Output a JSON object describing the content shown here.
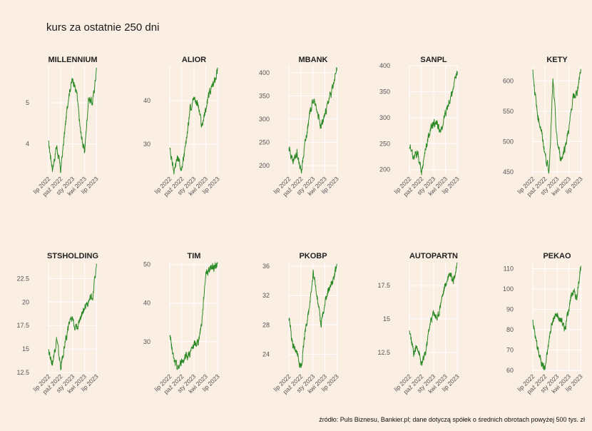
{
  "page": {
    "title": "kurs za ostatnie 250 dni",
    "caption": "źródło: Puls Biznesu, Bankier.pl; dane dotyczą spółek o średnich obrotach powyżej 500 tys. zł"
  },
  "colors": {
    "background": "#fbeee3",
    "grid": "#ffffff",
    "line": "#2b8a26"
  },
  "chart_data": [
    {
      "type": "line",
      "title": "MILLENNIUM",
      "ylim": [
        3.25,
        5.9
      ],
      "yticks": [
        4,
        5
      ],
      "xticks": [
        "lip 2022",
        "paź 2022",
        "sty 2023",
        "kwi 2023",
        "lip 2023"
      ],
      "x": [
        "2022-07",
        "2022-08",
        "2022-09",
        "2022-10",
        "2022-11",
        "2022-12",
        "2023-01",
        "2023-02",
        "2023-03",
        "2023-04",
        "2023-05",
        "2023-06",
        "2023-07"
      ],
      "values": [
        4.0,
        3.4,
        3.95,
        3.35,
        4.3,
        5.2,
        5.6,
        5.2,
        4.3,
        3.8,
        5.1,
        5.0,
        5.8
      ]
    },
    {
      "type": "line",
      "title": "ALIOR",
      "ylim": [
        23,
        48
      ],
      "yticks": [
        30,
        40
      ],
      "xticks": [
        "lip 2022",
        "paź 2022",
        "sty 2023",
        "kwi 2023",
        "lip 2023"
      ],
      "x": [
        "2022-07",
        "2022-08",
        "2022-09",
        "2022-10",
        "2022-11",
        "2022-12",
        "2023-01",
        "2023-02",
        "2023-03",
        "2023-04",
        "2023-05",
        "2023-06",
        "2023-07"
      ],
      "values": [
        29,
        24,
        27,
        24,
        30,
        38,
        41,
        39,
        34,
        38,
        42,
        44,
        47
      ]
    },
    {
      "type": "line",
      "title": "MBANK",
      "ylim": [
        180,
        415
      ],
      "yticks": [
        200,
        250,
        300,
        350,
        400
      ],
      "xticks": [
        "lip 2022",
        "paź 2022",
        "sty 2023",
        "kwi 2023",
        "lip 2023"
      ],
      "x": [
        "2022-07",
        "2022-08",
        "2022-09",
        "2022-10",
        "2022-11",
        "2022-12",
        "2023-01",
        "2023-02",
        "2023-03",
        "2023-04",
        "2023-05",
        "2023-06",
        "2023-07"
      ],
      "values": [
        240,
        205,
        230,
        185,
        250,
        300,
        345,
        320,
        280,
        310,
        340,
        370,
        410
      ]
    },
    {
      "type": "line",
      "title": "SANPL",
      "ylim": [
        190,
        400
      ],
      "yticks": [
        200,
        250,
        300,
        350,
        400
      ],
      "xticks": [
        "lip 2022",
        "paź 2022",
        "sty 2023",
        "kwi 2023",
        "lip 2023"
      ],
      "x": [
        "2022-07",
        "2022-08",
        "2022-09",
        "2022-10",
        "2022-11",
        "2022-12",
        "2023-01",
        "2023-02",
        "2023-03",
        "2023-04",
        "2023-05",
        "2023-06",
        "2023-07"
      ],
      "values": [
        245,
        225,
        230,
        195,
        240,
        270,
        290,
        285,
        275,
        310,
        330,
        360,
        390
      ]
    },
    {
      "type": "line",
      "title": "KETY",
      "ylim": [
        445,
        625
      ],
      "yticks": [
        450,
        500,
        550,
        600
      ],
      "xticks": [
        "lip 2022",
        "paź 2022",
        "sty 2023",
        "kwi 2023",
        "lip 2023"
      ],
      "x": [
        "2022-07",
        "2022-08",
        "2022-09",
        "2022-10",
        "2022-11",
        "2022-12",
        "2023-01",
        "2023-02",
        "2023-03",
        "2023-04",
        "2023-05",
        "2023-06",
        "2023-07"
      ],
      "values": [
        615,
        550,
        520,
        480,
        450,
        600,
        500,
        470,
        490,
        520,
        570,
        580,
        620
      ]
    },
    {
      "type": "line",
      "title": "STSHOLDING",
      "ylim": [
        12.5,
        24.2
      ],
      "yticks": [
        12.5,
        15.0,
        17.5,
        20.0,
        22.5
      ],
      "xticks": [
        "lip 2022",
        "paź 2022",
        "sty 2023",
        "kwi 2023",
        "lip 2023"
      ],
      "x": [
        "2022-07",
        "2022-08",
        "2022-09",
        "2022-10",
        "2022-11",
        "2022-12",
        "2023-01",
        "2023-02",
        "2023-03",
        "2023-04",
        "2023-05",
        "2023-06",
        "2023-07"
      ],
      "values": [
        14.8,
        13.5,
        16.0,
        13.0,
        15.5,
        17.5,
        18.2,
        17.2,
        18.5,
        19.5,
        20.0,
        20.5,
        24.0
      ]
    },
    {
      "type": "line",
      "title": "TIM",
      "ylim": [
        22,
        50.5
      ],
      "yticks": [
        30,
        40,
        50
      ],
      "xticks": [
        "lip 2022",
        "paź 2022",
        "sty 2023",
        "kwi 2023",
        "lip 2023"
      ],
      "x": [
        "2022-07",
        "2022-08",
        "2022-09",
        "2022-10",
        "2022-11",
        "2022-12",
        "2023-01",
        "2023-02",
        "2023-03",
        "2023-04",
        "2023-05",
        "2023-06",
        "2023-07"
      ],
      "values": [
        32,
        25,
        23,
        25,
        26,
        27,
        29,
        30,
        35,
        48,
        49,
        49.5,
        50
      ]
    },
    {
      "type": "line",
      "title": "PKOBP",
      "ylim": [
        21.5,
        36.5
      ],
      "yticks": [
        24,
        28,
        32,
        36
      ],
      "xticks": [
        "lip 2022",
        "paź 2022",
        "sty 2023",
        "kwi 2023",
        "lip 2023"
      ],
      "x": [
        "2022-07",
        "2022-08",
        "2022-09",
        "2022-10",
        "2022-11",
        "2022-12",
        "2023-01",
        "2023-02",
        "2023-03",
        "2023-04",
        "2023-05",
        "2023-06",
        "2023-07"
      ],
      "values": [
        29,
        25,
        24,
        22,
        27,
        30,
        35,
        32,
        28,
        31,
        33,
        34,
        36
      ]
    },
    {
      "type": "line",
      "title": "AUTOPARTN",
      "ylim": [
        11,
        19.2
      ],
      "yticks": [
        12.5,
        15.0,
        17.5
      ],
      "xticks": [
        "lip 2022",
        "paź 2022",
        "sty 2023",
        "kwi 2023",
        "lip 2023"
      ],
      "x": [
        "2022-07",
        "2022-08",
        "2022-09",
        "2022-10",
        "2022-11",
        "2022-12",
        "2023-01",
        "2023-02",
        "2023-03",
        "2023-04",
        "2023-05",
        "2023-06",
        "2023-07"
      ],
      "values": [
        14.0,
        12.5,
        13.0,
        11.5,
        12.5,
        14.5,
        15.5,
        15.0,
        16.5,
        17.5,
        18.5,
        18.0,
        19.0
      ]
    },
    {
      "type": "line",
      "title": "PEKAO",
      "ylim": [
        59,
        113
      ],
      "yticks": [
        60,
        70,
        80,
        90,
        100,
        110
      ],
      "xticks": [
        "lip 2022",
        "paź 2022",
        "sty 2023",
        "kwi 2023",
        "lip 2023"
      ],
      "x": [
        "2022-07",
        "2022-08",
        "2022-09",
        "2022-10",
        "2022-11",
        "2022-12",
        "2023-01",
        "2023-02",
        "2023-03",
        "2023-04",
        "2023-05",
        "2023-06",
        "2023-07"
      ],
      "values": [
        85,
        72,
        65,
        61,
        75,
        85,
        87,
        85,
        80,
        90,
        100,
        95,
        112
      ]
    }
  ]
}
